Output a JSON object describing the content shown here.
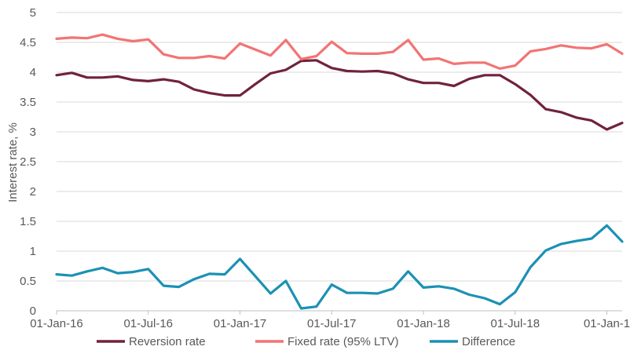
{
  "chart_data": {
    "type": "line",
    "title": "",
    "xlabel": "",
    "ylabel": "Interest rate, %",
    "ylim": [
      0,
      5
    ],
    "yticks": [
      "0",
      "0.5",
      "1",
      "1.5",
      "2",
      "2.5",
      "3",
      "3.5",
      "4",
      "4.5",
      "5"
    ],
    "xticks": [
      "01-Jan-16",
      "01-Jul-16",
      "01-Jan-17",
      "01-Jul-17",
      "01-Jan-18",
      "01-Jul-18",
      "01-Jan-1"
    ],
    "x": [
      "2016-01",
      "2016-02",
      "2016-03",
      "2016-04",
      "2016-05",
      "2016-06",
      "2016-07",
      "2016-08",
      "2016-09",
      "2016-10",
      "2016-11",
      "2016-12",
      "2017-01",
      "2017-02",
      "2017-03",
      "2017-04",
      "2017-05",
      "2017-06",
      "2017-07",
      "2017-08",
      "2017-09",
      "2017-10",
      "2017-11",
      "2017-12",
      "2018-01",
      "2018-02",
      "2018-03",
      "2018-04",
      "2018-05",
      "2018-06",
      "2018-07",
      "2018-08",
      "2018-09",
      "2018-10",
      "2018-11",
      "2018-12",
      "2019-01",
      "2019-02"
    ],
    "grid": true,
    "legend_position": "bottom",
    "series": [
      {
        "name": "Reversion rate",
        "color": "#70223f",
        "values": [
          3.95,
          3.99,
          3.91,
          3.91,
          3.93,
          3.87,
          3.85,
          3.88,
          3.84,
          3.71,
          3.65,
          3.61,
          3.61,
          3.8,
          3.98,
          4.04,
          4.19,
          4.2,
          4.07,
          4.02,
          4.01,
          4.02,
          3.98,
          3.88,
          3.82,
          3.82,
          3.77,
          3.89,
          3.95,
          3.95,
          3.8,
          3.62,
          3.38,
          3.33,
          3.24,
          3.19,
          3.04,
          3.15
        ]
      },
      {
        "name": "Fixed rate (95% LTV)",
        "color": "#f27474",
        "values": [
          4.56,
          4.58,
          4.57,
          4.63,
          4.56,
          4.52,
          4.55,
          4.3,
          4.24,
          4.24,
          4.27,
          4.23,
          4.48,
          4.38,
          4.28,
          4.54,
          4.22,
          4.27,
          4.51,
          4.32,
          4.31,
          4.31,
          4.34,
          4.54,
          4.21,
          4.23,
          4.14,
          4.16,
          4.16,
          4.06,
          4.11,
          4.35,
          4.39,
          4.45,
          4.41,
          4.4,
          4.47,
          4.31
        ]
      },
      {
        "name": "Difference",
        "color": "#1b91b4",
        "values": [
          0.61,
          0.59,
          0.66,
          0.72,
          0.63,
          0.65,
          0.7,
          0.42,
          0.4,
          0.53,
          0.62,
          0.61,
          0.87,
          0.58,
          0.29,
          0.5,
          0.04,
          0.07,
          0.44,
          0.3,
          0.3,
          0.29,
          0.37,
          0.66,
          0.39,
          0.41,
          0.37,
          0.27,
          0.21,
          0.11,
          0.31,
          0.73,
          1.01,
          1.12,
          1.17,
          1.21,
          1.43,
          1.16
        ]
      }
    ]
  }
}
